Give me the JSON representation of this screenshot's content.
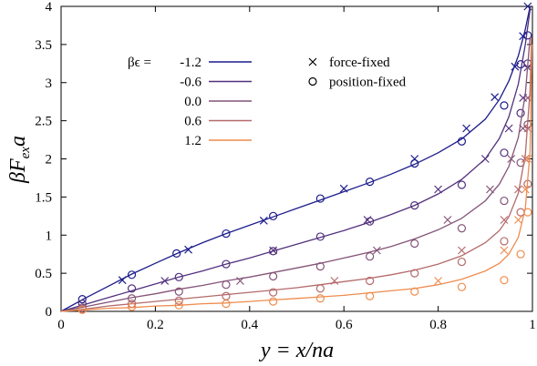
{
  "chart_data": {
    "type": "line",
    "xlabel": "y = x/na",
    "ylabel": "βF_ex a",
    "xlim": [
      0,
      1
    ],
    "ylim": [
      0,
      4
    ],
    "grid": false,
    "x_ticks": [
      "0",
      "0.2",
      "0.4",
      "0.6",
      "0.8",
      "1"
    ],
    "y_ticks": [
      "0",
      "0.5",
      "1",
      "1.5",
      "2",
      "2.5",
      "3",
      "3.5",
      "4"
    ],
    "legend_title_prefix": "βϵ =",
    "legend_placement": "top-left",
    "marker_legend": [
      {
        "marker": "cross",
        "label": "force-fixed"
      },
      {
        "marker": "circle",
        "label": "position-fixed"
      }
    ],
    "series": [
      {
        "name": "-1.2",
        "color": "#1c1c8c",
        "line": [
          [
            0,
            0
          ],
          [
            0.05,
            0.17
          ],
          [
            0.1,
            0.33
          ],
          [
            0.15,
            0.49
          ],
          [
            0.2,
            0.63
          ],
          [
            0.25,
            0.77
          ],
          [
            0.3,
            0.9
          ],
          [
            0.35,
            1.02
          ],
          [
            0.4,
            1.13
          ],
          [
            0.45,
            1.24
          ],
          [
            0.5,
            1.35
          ],
          [
            0.55,
            1.46
          ],
          [
            0.6,
            1.57
          ],
          [
            0.65,
            1.68
          ],
          [
            0.7,
            1.8
          ],
          [
            0.75,
            1.93
          ],
          [
            0.8,
            2.08
          ],
          [
            0.85,
            2.26
          ],
          [
            0.9,
            2.52
          ],
          [
            0.93,
            2.78
          ],
          [
            0.95,
            3.02
          ],
          [
            0.97,
            3.35
          ],
          [
            0.985,
            3.7
          ],
          [
            0.995,
            4.0
          ]
        ],
        "force_fixed": [
          [
            0.13,
            0.41
          ],
          [
            0.27,
            0.81
          ],
          [
            0.43,
            1.19
          ],
          [
            0.6,
            1.61
          ],
          [
            0.75,
            2.0
          ],
          [
            0.86,
            2.4
          ],
          [
            0.92,
            2.81
          ],
          [
            0.963,
            3.21
          ],
          [
            0.98,
            3.61
          ],
          [
            0.99,
            4.0
          ]
        ],
        "position_fixed": [
          [
            0.045,
            0.16
          ],
          [
            0.15,
            0.48
          ],
          [
            0.245,
            0.76
          ],
          [
            0.35,
            1.02
          ],
          [
            0.45,
            1.25
          ],
          [
            0.55,
            1.48
          ],
          [
            0.655,
            1.7
          ],
          [
            0.75,
            1.94
          ],
          [
            0.85,
            2.23
          ],
          [
            0.94,
            2.7
          ],
          [
            0.975,
            3.24
          ],
          [
            0.99,
            3.62
          ]
        ]
      },
      {
        "name": "-0.6",
        "color": "#52307e",
        "line": [
          [
            0,
            0
          ],
          [
            0.05,
            0.09
          ],
          [
            0.1,
            0.18
          ],
          [
            0.15,
            0.27
          ],
          [
            0.2,
            0.36
          ],
          [
            0.25,
            0.45
          ],
          [
            0.3,
            0.53
          ],
          [
            0.35,
            0.62
          ],
          [
            0.4,
            0.7
          ],
          [
            0.45,
            0.79
          ],
          [
            0.5,
            0.88
          ],
          [
            0.55,
            0.97
          ],
          [
            0.6,
            1.06
          ],
          [
            0.65,
            1.16
          ],
          [
            0.7,
            1.27
          ],
          [
            0.75,
            1.39
          ],
          [
            0.8,
            1.54
          ],
          [
            0.85,
            1.73
          ],
          [
            0.9,
            2.0
          ],
          [
            0.93,
            2.27
          ],
          [
            0.95,
            2.55
          ],
          [
            0.97,
            2.98
          ],
          [
            0.985,
            3.5
          ],
          [
            0.996,
            4.0
          ]
        ],
        "force_fixed": [
          [
            0.22,
            0.4
          ],
          [
            0.45,
            0.8
          ],
          [
            0.65,
            1.2
          ],
          [
            0.8,
            1.6
          ],
          [
            0.9,
            2.0
          ],
          [
            0.95,
            2.4
          ],
          [
            0.98,
            2.8
          ],
          [
            0.99,
            3.2
          ]
        ],
        "position_fixed": [
          [
            0.045,
            0.1
          ],
          [
            0.15,
            0.3
          ],
          [
            0.25,
            0.45
          ],
          [
            0.35,
            0.62
          ],
          [
            0.45,
            0.79
          ],
          [
            0.55,
            0.98
          ],
          [
            0.655,
            1.18
          ],
          [
            0.75,
            1.39
          ],
          [
            0.85,
            1.66
          ],
          [
            0.94,
            2.08
          ],
          [
            0.975,
            2.6
          ],
          [
            0.99,
            3.25
          ]
        ]
      },
      {
        "name": "0.0",
        "color": "#845478",
        "line": [
          [
            0,
            0
          ],
          [
            0.05,
            0.06
          ],
          [
            0.1,
            0.12
          ],
          [
            0.15,
            0.18
          ],
          [
            0.2,
            0.23
          ],
          [
            0.25,
            0.29
          ],
          [
            0.3,
            0.34
          ],
          [
            0.35,
            0.4
          ],
          [
            0.4,
            0.45
          ],
          [
            0.45,
            0.51
          ],
          [
            0.5,
            0.57
          ],
          [
            0.55,
            0.63
          ],
          [
            0.6,
            0.7
          ],
          [
            0.65,
            0.77
          ],
          [
            0.7,
            0.85
          ],
          [
            0.75,
            0.95
          ],
          [
            0.8,
            1.07
          ],
          [
            0.85,
            1.22
          ],
          [
            0.9,
            1.45
          ],
          [
            0.93,
            1.67
          ],
          [
            0.95,
            1.9
          ],
          [
            0.97,
            2.28
          ],
          [
            0.985,
            2.85
          ],
          [
            0.995,
            3.6
          ]
        ],
        "force_fixed": [
          [
            0.38,
            0.4
          ],
          [
            0.67,
            0.8
          ],
          [
            0.82,
            1.2
          ],
          [
            0.91,
            1.6
          ],
          [
            0.955,
            2.0
          ],
          [
            0.98,
            2.4
          ],
          [
            0.99,
            2.8
          ]
        ],
        "position_fixed": [
          [
            0.045,
            0.05
          ],
          [
            0.15,
            0.17
          ],
          [
            0.25,
            0.26
          ],
          [
            0.35,
            0.35
          ],
          [
            0.45,
            0.46
          ],
          [
            0.55,
            0.59
          ],
          [
            0.655,
            0.72
          ],
          [
            0.75,
            0.89
          ],
          [
            0.85,
            1.09
          ],
          [
            0.94,
            1.45
          ],
          [
            0.975,
            1.95
          ],
          [
            0.99,
            2.45
          ]
        ]
      },
      {
        "name": "0.6",
        "color": "#b46a6b",
        "line": [
          [
            0,
            0
          ],
          [
            0.05,
            0.03
          ],
          [
            0.1,
            0.07
          ],
          [
            0.15,
            0.1
          ],
          [
            0.2,
            0.13
          ],
          [
            0.25,
            0.16
          ],
          [
            0.3,
            0.19
          ],
          [
            0.35,
            0.22
          ],
          [
            0.4,
            0.25
          ],
          [
            0.45,
            0.28
          ],
          [
            0.5,
            0.31
          ],
          [
            0.55,
            0.35
          ],
          [
            0.6,
            0.39
          ],
          [
            0.65,
            0.43
          ],
          [
            0.7,
            0.48
          ],
          [
            0.75,
            0.54
          ],
          [
            0.8,
            0.62
          ],
          [
            0.85,
            0.73
          ],
          [
            0.9,
            0.9
          ],
          [
            0.93,
            1.06
          ],
          [
            0.95,
            1.24
          ],
          [
            0.97,
            1.55
          ],
          [
            0.985,
            2.05
          ],
          [
            0.995,
            2.9
          ],
          [
            0.998,
            3.6
          ]
        ],
        "force_fixed": [
          [
            0.58,
            0.4
          ],
          [
            0.85,
            0.8
          ],
          [
            0.94,
            1.2
          ],
          [
            0.97,
            1.6
          ],
          [
            0.985,
            2.0
          ],
          [
            0.99,
            2.4
          ]
        ],
        "position_fixed": [
          [
            0.045,
            0.03
          ],
          [
            0.15,
            0.1
          ],
          [
            0.25,
            0.14
          ],
          [
            0.35,
            0.2
          ],
          [
            0.45,
            0.25
          ],
          [
            0.55,
            0.3
          ],
          [
            0.655,
            0.4
          ],
          [
            0.75,
            0.5
          ],
          [
            0.85,
            0.65
          ],
          [
            0.94,
            0.92
          ],
          [
            0.975,
            1.3
          ],
          [
            0.99,
            1.67
          ]
        ]
      },
      {
        "name": "1.2",
        "color": "#ee8c4e",
        "line": [
          [
            0,
            0
          ],
          [
            0.05,
            0.02
          ],
          [
            0.1,
            0.04
          ],
          [
            0.15,
            0.05
          ],
          [
            0.2,
            0.07
          ],
          [
            0.25,
            0.08
          ],
          [
            0.3,
            0.1
          ],
          [
            0.35,
            0.11
          ],
          [
            0.4,
            0.13
          ],
          [
            0.45,
            0.15
          ],
          [
            0.5,
            0.17
          ],
          [
            0.55,
            0.19
          ],
          [
            0.6,
            0.21
          ],
          [
            0.65,
            0.24
          ],
          [
            0.7,
            0.27
          ],
          [
            0.75,
            0.3
          ],
          [
            0.8,
            0.35
          ],
          [
            0.85,
            0.42
          ],
          [
            0.9,
            0.53
          ],
          [
            0.93,
            0.63
          ],
          [
            0.95,
            0.75
          ],
          [
            0.97,
            0.97
          ],
          [
            0.985,
            1.35
          ],
          [
            0.995,
            2.1
          ],
          [
            0.999,
            3.5
          ]
        ],
        "force_fixed": [
          [
            0.8,
            0.4
          ],
          [
            0.94,
            0.8
          ],
          [
            0.97,
            1.2
          ],
          [
            0.985,
            1.6
          ],
          [
            0.99,
            2.0
          ]
        ],
        "position_fixed": [
          [
            0.045,
            0.02
          ],
          [
            0.15,
            0.06
          ],
          [
            0.25,
            0.08
          ],
          [
            0.35,
            0.1
          ],
          [
            0.45,
            0.13
          ],
          [
            0.55,
            0.17
          ],
          [
            0.655,
            0.2
          ],
          [
            0.75,
            0.26
          ],
          [
            0.85,
            0.32
          ],
          [
            0.94,
            0.41
          ],
          [
            0.975,
            0.75
          ],
          [
            0.99,
            1.3
          ]
        ]
      }
    ]
  }
}
